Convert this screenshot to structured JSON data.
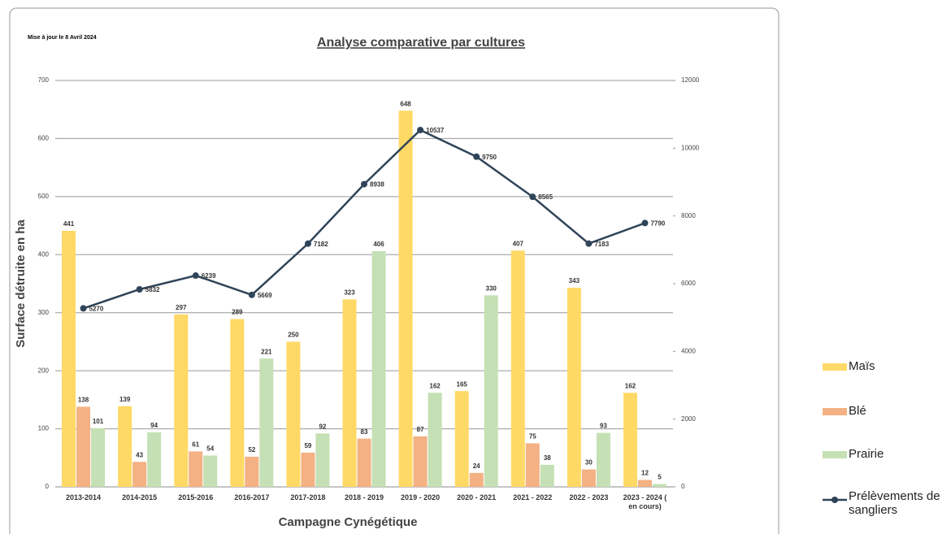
{
  "chart_data": {
    "type": "bar",
    "title": "Analyse comparative par cultures",
    "note": "Mise à jour le 8 Avril 2024",
    "x_label": "Campagne Cynégétique",
    "y_label": "Surface détruite en ha",
    "categories": [
      "2013-2014",
      "2014-2015",
      "2015-2016",
      "2016-2017",
      "2017-2018",
      "2018 - 2019",
      "2019 - 2020",
      "2020 - 2021",
      "2021  - 2022",
      "2022 - 2023",
      "2023 - 2024 ( en cours)"
    ],
    "series": [
      {
        "name": "Maïs",
        "type": "bar",
        "color": "#ffd966",
        "values": [
          441,
          139,
          297,
          289,
          250,
          323,
          648,
          165,
          407,
          343,
          162
        ]
      },
      {
        "name": "Blé",
        "type": "bar",
        "color": "#f4b183",
        "values": [
          138,
          43,
          61,
          52,
          59,
          83,
          87,
          24,
          75,
          30,
          12
        ]
      },
      {
        "name": "Prairie",
        "type": "bar",
        "color": "#c5e0b4",
        "values": [
          101,
          94,
          54,
          221,
          92,
          406,
          162,
          330,
          38,
          93,
          5
        ]
      },
      {
        "name": "Prélèvements de sangliers",
        "type": "line",
        "axis": "y2",
        "color": "#2f4459",
        "values": [
          5270,
          5832,
          6239,
          5669,
          7182,
          8938,
          10537,
          9750,
          8565,
          7183,
          7790
        ]
      }
    ],
    "ylim": [
      0,
      700
    ],
    "yticks": [
      0,
      100,
      200,
      300,
      400,
      500,
      600,
      700
    ],
    "y2lim": [
      0,
      12000
    ],
    "y2ticks": [
      0,
      2000,
      4000,
      6000,
      8000,
      10000,
      12000
    ],
    "grid": true,
    "legend": "right"
  }
}
